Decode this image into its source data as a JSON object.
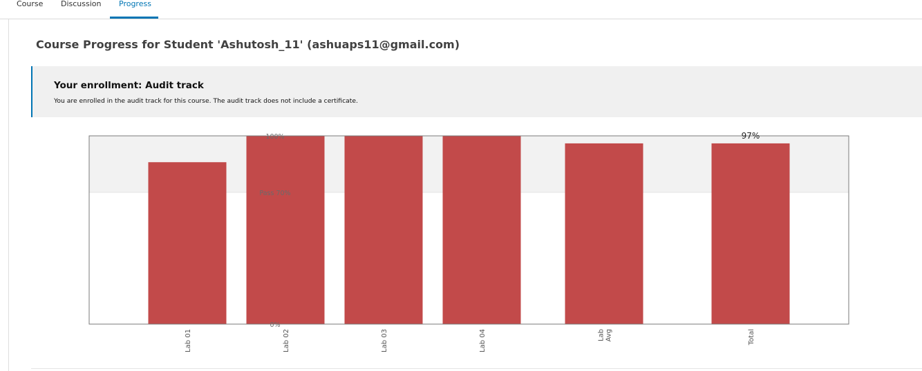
{
  "tabs": [
    {
      "label": "Course",
      "active": false
    },
    {
      "label": "Discussion",
      "active": false
    },
    {
      "label": "Progress",
      "active": true
    }
  ],
  "page_title": "Course Progress for Student 'Ashutosh_11' (ashuaps11@gmail.com)",
  "enrollment": {
    "title": "Your enrollment: Audit track",
    "message": "You are enrolled in the audit track for this course. The audit track does not include a certificate."
  },
  "colors": {
    "accent": "#0075b4",
    "bar": "#c24a4a",
    "pass_band": "#f2f2f2"
  },
  "chart_data": {
    "type": "bar",
    "categories": [
      "Lab 01",
      "Lab 02",
      "Lab 03",
      "Lab 04",
      "Lab\nAvg",
      "Total"
    ],
    "values": [
      86,
      100,
      100,
      100,
      96,
      96
    ],
    "ylim": [
      0,
      100
    ],
    "y_ticks": [
      {
        "value": 100,
        "label": "100%"
      },
      {
        "value": 70,
        "label": "Pass 70%"
      },
      {
        "value": 0,
        "label": "0%"
      }
    ],
    "pass_threshold": 70,
    "annotations": [
      {
        "category": "Total",
        "label": "97%"
      }
    ],
    "xlabel": "",
    "ylabel": ""
  }
}
